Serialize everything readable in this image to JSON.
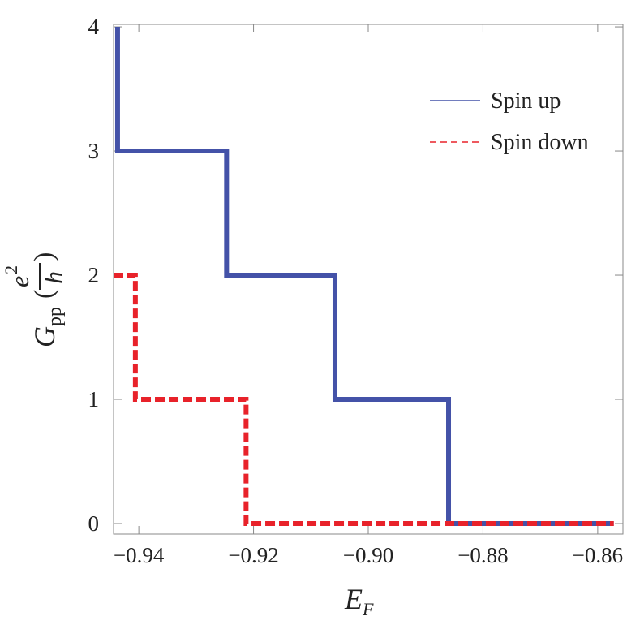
{
  "chart_data": {
    "type": "line",
    "step": true,
    "x_label": {
      "symbol": "E",
      "subscript": "F"
    },
    "y_label": {
      "symbol": "G",
      "subscript": "pp",
      "numerator": "e",
      "exponent": "2",
      "denominator": "h"
    },
    "series": [
      {
        "name": "Spin up",
        "color": "#4452a8",
        "dash": false,
        "x": [
          -0.9437,
          -0.9437,
          -0.9247,
          -0.9247,
          -0.9058,
          -0.9058,
          -0.886,
          -0.886,
          -0.8572
        ],
        "values": [
          4,
          3,
          3,
          2,
          2,
          1,
          1,
          0,
          0
        ]
      },
      {
        "name": "Spin down",
        "color": "#e8222a",
        "dash": true,
        "x": [
          -0.9444,
          -0.9406,
          -0.9406,
          -0.9213,
          -0.9213,
          -0.8572
        ],
        "values": [
          2,
          2,
          1,
          1,
          0,
          0
        ]
      }
    ],
    "xlim": [
      -0.9444,
      -0.8556
    ],
    "ylim": [
      -0.085,
      4.02
    ],
    "xticks": [
      {
        "value": -0.94,
        "label": "−0.94"
      },
      {
        "value": -0.92,
        "label": "−0.92"
      },
      {
        "value": -0.9,
        "label": "−0.90"
      },
      {
        "value": -0.88,
        "label": "−0.88"
      },
      {
        "value": -0.86,
        "label": "−0.86"
      }
    ],
    "yticks": [
      0,
      1,
      2,
      3,
      4
    ],
    "legend": "upper right"
  }
}
